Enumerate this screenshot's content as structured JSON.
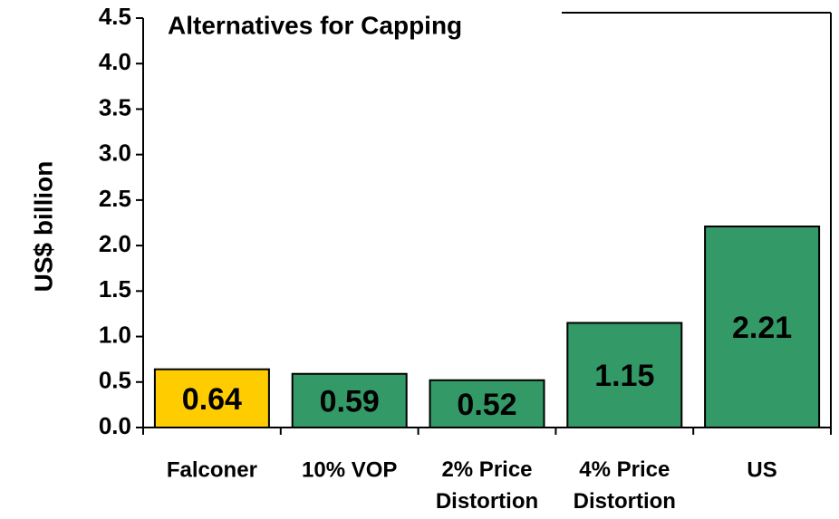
{
  "chart_data": {
    "type": "bar",
    "title": "Alternatives for Capping",
    "y_label": "US$ billion",
    "categories": [
      "Falconer",
      "10% VOP",
      "2% Price Distortion",
      "4% Price Distortion",
      "US"
    ],
    "values": [
      0.64,
      0.59,
      0.52,
      1.15,
      2.21
    ],
    "colors": [
      "#ffcc00",
      "#339966",
      "#339966",
      "#339966",
      "#339966"
    ],
    "ylim": [
      0,
      4.5
    ],
    "yticks": [
      {
        "value": 0,
        "label": "0.0"
      },
      {
        "value": 0.5,
        "label": "0.5"
      },
      {
        "value": 1,
        "label": "1.0"
      },
      {
        "value": 1.5,
        "label": "1.5"
      },
      {
        "value": 2,
        "label": "2.0"
      },
      {
        "value": 2.5,
        "label": "2.5"
      },
      {
        "value": 3,
        "label": "3.0"
      },
      {
        "value": 3.5,
        "label": "3.5"
      },
      {
        "value": 4,
        "label": "4.0"
      },
      {
        "value": 4.5,
        "label": "4.5"
      }
    ],
    "grid": false
  }
}
